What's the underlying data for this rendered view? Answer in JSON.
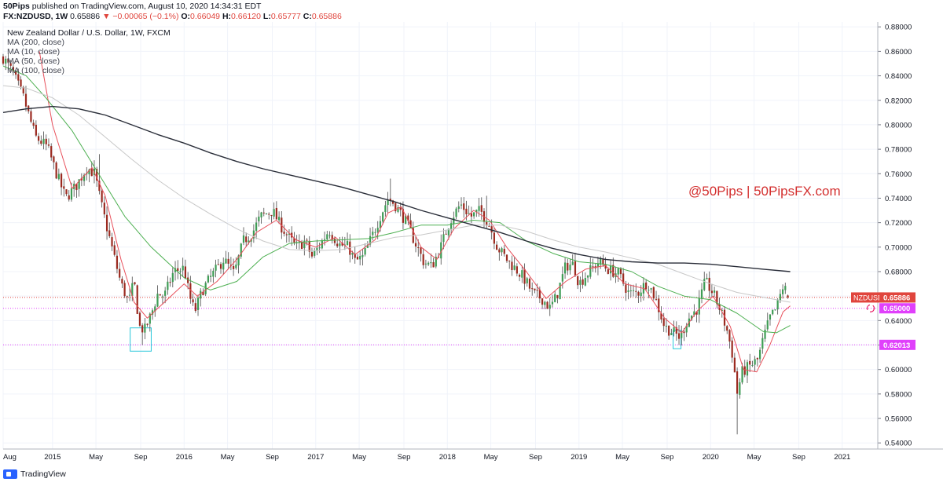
{
  "header": {
    "author": "50Pips",
    "published_on": "published on TradingView.com, August 10, 2020 14:34:31 EDT",
    "symbol": "FX:NZDUSD, 1W",
    "last": "0.65886",
    "change_arrow": "▼",
    "change": "−0.00065 (−0.1%)",
    "o_label": "O:",
    "o_val": "0.66049",
    "h_label": "H:",
    "h_val": "0.66120",
    "l_label": "L:",
    "l_val": "0.65777",
    "c_label": "C:",
    "c_val": "0.65886"
  },
  "legend": {
    "title": "New Zealand Dollar / U.S. Dollar, 1W, FXCM",
    "ma200": "MA (200, close)",
    "ma10": "MA (10, close)",
    "ma50": "MA (50, close)",
    "ma100": "MA (100, close)"
  },
  "watermark": "@50Pips | 50PipsFX.com",
  "footer": {
    "brand": "TradingView"
  },
  "chart_data": {
    "type": "candlestick",
    "title": "New Zealand Dollar / U.S. Dollar, 1W, FXCM",
    "ylim": [
      0.535,
      0.884
    ],
    "y_ticks": [
      "0.88000",
      "0.86000",
      "0.84000",
      "0.82000",
      "0.80000",
      "0.78000",
      "0.76000",
      "0.74000",
      "0.72000",
      "0.70000",
      "0.68000",
      "0.66000",
      "0.64000",
      "0.62000",
      "0.60000",
      "0.58000",
      "0.56000",
      "0.54000"
    ],
    "x_range": [
      2014.625,
      2021.27
    ],
    "x_ticks": [
      {
        "label": "Aug",
        "t": 2014.625
      },
      {
        "label": "2015",
        "t": 2015.0
      },
      {
        "label": "May",
        "t": 2015.33
      },
      {
        "label": "Sep",
        "t": 2015.67
      },
      {
        "label": "2016",
        "t": 2016.0
      },
      {
        "label": "May",
        "t": 2016.33
      },
      {
        "label": "Sep",
        "t": 2016.67
      },
      {
        "label": "2017",
        "t": 2017.0
      },
      {
        "label": "May",
        "t": 2017.33
      },
      {
        "label": "Sep",
        "t": 2017.67
      },
      {
        "label": "2018",
        "t": 2018.0
      },
      {
        "label": "May",
        "t": 2018.33
      },
      {
        "label": "Sep",
        "t": 2018.67
      },
      {
        "label": "2019",
        "t": 2019.0
      },
      {
        "label": "May",
        "t": 2019.33
      },
      {
        "label": "Sep",
        "t": 2019.67
      },
      {
        "label": "2020",
        "t": 2020.0
      },
      {
        "label": "May",
        "t": 2020.33
      },
      {
        "label": "Sep",
        "t": 2020.67
      },
      {
        "label": "2021",
        "t": 2021.0
      }
    ],
    "anchors": [
      [
        2014.625,
        0.855
      ],
      [
        2014.7,
        0.842
      ],
      [
        2014.78,
        0.822
      ],
      [
        2014.87,
        0.79
      ],
      [
        2014.96,
        0.782
      ],
      [
        2015.03,
        0.76
      ],
      [
        2015.1,
        0.74
      ],
      [
        2015.18,
        0.75
      ],
      [
        2015.26,
        0.765
      ],
      [
        2015.32,
        0.76
      ],
      [
        2015.37,
        0.735
      ],
      [
        2015.45,
        0.7
      ],
      [
        2015.52,
        0.67
      ],
      [
        2015.58,
        0.655
      ],
      [
        2015.62,
        0.672
      ],
      [
        2015.66,
        0.635
      ],
      [
        2015.7,
        0.632
      ],
      [
        2015.75,
        0.645
      ],
      [
        2015.8,
        0.662
      ],
      [
        2015.85,
        0.66
      ],
      [
        2015.92,
        0.68
      ],
      [
        2016.0,
        0.683
      ],
      [
        2016.04,
        0.66
      ],
      [
        2016.08,
        0.647
      ],
      [
        2016.14,
        0.665
      ],
      [
        2016.2,
        0.675
      ],
      [
        2016.3,
        0.69
      ],
      [
        2016.38,
        0.678
      ],
      [
        2016.45,
        0.705
      ],
      [
        2016.52,
        0.712
      ],
      [
        2016.58,
        0.725
      ],
      [
        2016.67,
        0.73
      ],
      [
        2016.72,
        0.72
      ],
      [
        2016.78,
        0.71
      ],
      [
        2016.85,
        0.7
      ],
      [
        2016.92,
        0.705
      ],
      [
        2016.97,
        0.692
      ],
      [
        2017.02,
        0.7
      ],
      [
        2017.1,
        0.714
      ],
      [
        2017.18,
        0.702
      ],
      [
        2017.25,
        0.7
      ],
      [
        2017.3,
        0.688
      ],
      [
        2017.36,
        0.692
      ],
      [
        2017.44,
        0.712
      ],
      [
        2017.5,
        0.728
      ],
      [
        2017.55,
        0.74
      ],
      [
        2017.6,
        0.735
      ],
      [
        2017.68,
        0.722
      ],
      [
        2017.75,
        0.705
      ],
      [
        2017.82,
        0.688
      ],
      [
        2017.88,
        0.684
      ],
      [
        2017.95,
        0.7
      ],
      [
        2018.02,
        0.722
      ],
      [
        2018.1,
        0.735
      ],
      [
        2018.18,
        0.725
      ],
      [
        2018.25,
        0.73
      ],
      [
        2018.32,
        0.718
      ],
      [
        2018.38,
        0.7
      ],
      [
        2018.45,
        0.69
      ],
      [
        2018.52,
        0.682
      ],
      [
        2018.58,
        0.675
      ],
      [
        2018.65,
        0.662
      ],
      [
        2018.72,
        0.658
      ],
      [
        2018.78,
        0.65
      ],
      [
        2018.83,
        0.66
      ],
      [
        2018.9,
        0.685
      ],
      [
        2018.96,
        0.686
      ],
      [
        2019.0,
        0.67
      ],
      [
        2019.06,
        0.678
      ],
      [
        2019.15,
        0.688
      ],
      [
        2019.22,
        0.682
      ],
      [
        2019.3,
        0.678
      ],
      [
        2019.38,
        0.662
      ],
      [
        2019.45,
        0.663
      ],
      [
        2019.52,
        0.672
      ],
      [
        2019.58,
        0.658
      ],
      [
        2019.65,
        0.635
      ],
      [
        2019.72,
        0.63
      ],
      [
        2019.77,
        0.626
      ],
      [
        2019.82,
        0.64
      ],
      [
        2019.9,
        0.65
      ],
      [
        2019.96,
        0.672
      ],
      [
        2020.02,
        0.662
      ],
      [
        2020.08,
        0.647
      ],
      [
        2020.13,
        0.63
      ],
      [
        2020.17,
        0.61
      ],
      [
        2020.2,
        0.58
      ],
      [
        2020.24,
        0.598
      ],
      [
        2020.3,
        0.603
      ],
      [
        2020.36,
        0.608
      ],
      [
        2020.4,
        0.625
      ],
      [
        2020.45,
        0.642
      ],
      [
        2020.5,
        0.65
      ],
      [
        2020.55,
        0.668
      ],
      [
        2020.605,
        0.659
      ]
    ],
    "series": [
      {
        "name": "MA (10, close)",
        "color": "#e8505b",
        "values": [
          [
            2014.9,
            0.86
          ],
          [
            2015.0,
            0.8
          ],
          [
            2015.15,
            0.748
          ],
          [
            2015.3,
            0.765
          ],
          [
            2015.4,
            0.742
          ],
          [
            2015.52,
            0.69
          ],
          [
            2015.62,
            0.655
          ],
          [
            2015.72,
            0.642
          ],
          [
            2015.85,
            0.655
          ],
          [
            2016.0,
            0.67
          ],
          [
            2016.1,
            0.66
          ],
          [
            2016.25,
            0.672
          ],
          [
            2016.4,
            0.69
          ],
          [
            2016.55,
            0.712
          ],
          [
            2016.7,
            0.722
          ],
          [
            2016.85,
            0.706
          ],
          [
            2017.0,
            0.7
          ],
          [
            2017.15,
            0.708
          ],
          [
            2017.3,
            0.694
          ],
          [
            2017.45,
            0.706
          ],
          [
            2017.55,
            0.728
          ],
          [
            2017.65,
            0.733
          ],
          [
            2017.8,
            0.7
          ],
          [
            2017.92,
            0.69
          ],
          [
            2018.05,
            0.715
          ],
          [
            2018.2,
            0.73
          ],
          [
            2018.32,
            0.722
          ],
          [
            2018.45,
            0.7
          ],
          [
            2018.6,
            0.68
          ],
          [
            2018.75,
            0.658
          ],
          [
            2018.9,
            0.672
          ],
          [
            2019.05,
            0.682
          ],
          [
            2019.2,
            0.685
          ],
          [
            2019.35,
            0.67
          ],
          [
            2019.5,
            0.666
          ],
          [
            2019.65,
            0.642
          ],
          [
            2019.78,
            0.63
          ],
          [
            2019.9,
            0.648
          ],
          [
            2020.02,
            0.66
          ],
          [
            2020.15,
            0.635
          ],
          [
            2020.25,
            0.6
          ],
          [
            2020.35,
            0.598
          ],
          [
            2020.45,
            0.62
          ],
          [
            2020.55,
            0.647
          ],
          [
            2020.605,
            0.652
          ]
        ]
      },
      {
        "name": "MA (50, close)",
        "color": "#4caf50",
        "values": [
          [
            2014.625,
            0.848
          ],
          [
            2014.8,
            0.84
          ],
          [
            2014.95,
            0.822
          ],
          [
            2015.15,
            0.795
          ],
          [
            2015.35,
            0.76
          ],
          [
            2015.55,
            0.725
          ],
          [
            2015.75,
            0.7
          ],
          [
            2016.0,
            0.675
          ],
          [
            2016.2,
            0.665
          ],
          [
            2016.4,
            0.672
          ],
          [
            2016.6,
            0.692
          ],
          [
            2016.8,
            0.703
          ],
          [
            2017.0,
            0.705
          ],
          [
            2017.2,
            0.706
          ],
          [
            2017.4,
            0.707
          ],
          [
            2017.6,
            0.712
          ],
          [
            2017.8,
            0.718
          ],
          [
            2018.0,
            0.718
          ],
          [
            2018.2,
            0.722
          ],
          [
            2018.4,
            0.72
          ],
          [
            2018.6,
            0.705
          ],
          [
            2018.8,
            0.695
          ],
          [
            2019.0,
            0.688
          ],
          [
            2019.2,
            0.686
          ],
          [
            2019.4,
            0.68
          ],
          [
            2019.6,
            0.668
          ],
          [
            2019.8,
            0.66
          ],
          [
            2020.0,
            0.657
          ],
          [
            2020.2,
            0.646
          ],
          [
            2020.4,
            0.631
          ],
          [
            2020.5,
            0.63
          ],
          [
            2020.605,
            0.636
          ]
        ]
      },
      {
        "name": "MA (100, close)",
        "color": "#c8c8c8",
        "values": [
          [
            2014.625,
            0.832
          ],
          [
            2014.8,
            0.83
          ],
          [
            2015.0,
            0.822
          ],
          [
            2015.2,
            0.808
          ],
          [
            2015.4,
            0.79
          ],
          [
            2015.6,
            0.772
          ],
          [
            2015.8,
            0.755
          ],
          [
            2016.0,
            0.74
          ],
          [
            2016.2,
            0.727
          ],
          [
            2016.4,
            0.715
          ],
          [
            2016.6,
            0.705
          ],
          [
            2016.8,
            0.698
          ],
          [
            2017.0,
            0.697
          ],
          [
            2017.2,
            0.698
          ],
          [
            2017.4,
            0.703
          ],
          [
            2017.6,
            0.708
          ],
          [
            2017.8,
            0.71
          ],
          [
            2018.0,
            0.714
          ],
          [
            2018.2,
            0.718
          ],
          [
            2018.4,
            0.718
          ],
          [
            2018.6,
            0.713
          ],
          [
            2018.8,
            0.706
          ],
          [
            2019.0,
            0.7
          ],
          [
            2019.2,
            0.696
          ],
          [
            2019.4,
            0.691
          ],
          [
            2019.6,
            0.686
          ],
          [
            2019.8,
            0.678
          ],
          [
            2020.0,
            0.67
          ],
          [
            2020.2,
            0.663
          ],
          [
            2020.4,
            0.659
          ],
          [
            2020.605,
            0.655
          ]
        ]
      },
      {
        "name": "MA (200, close)",
        "color": "#2a2e39",
        "values": [
          [
            2014.625,
            0.81
          ],
          [
            2014.8,
            0.813
          ],
          [
            2015.0,
            0.815
          ],
          [
            2015.2,
            0.813
          ],
          [
            2015.4,
            0.808
          ],
          [
            2015.6,
            0.8
          ],
          [
            2015.8,
            0.792
          ],
          [
            2016.0,
            0.785
          ],
          [
            2016.2,
            0.777
          ],
          [
            2016.4,
            0.77
          ],
          [
            2016.6,
            0.764
          ],
          [
            2016.8,
            0.759
          ],
          [
            2017.0,
            0.754
          ],
          [
            2017.2,
            0.749
          ],
          [
            2017.4,
            0.743
          ],
          [
            2017.6,
            0.737
          ],
          [
            2017.8,
            0.73
          ],
          [
            2018.0,
            0.724
          ],
          [
            2018.2,
            0.718
          ],
          [
            2018.4,
            0.712
          ],
          [
            2018.6,
            0.705
          ],
          [
            2018.8,
            0.699
          ],
          [
            2019.0,
            0.694
          ],
          [
            2019.2,
            0.69
          ],
          [
            2019.4,
            0.688
          ],
          [
            2019.6,
            0.687
          ],
          [
            2019.8,
            0.687
          ],
          [
            2020.0,
            0.686
          ],
          [
            2020.2,
            0.684
          ],
          [
            2020.4,
            0.682
          ],
          [
            2020.605,
            0.68
          ]
        ]
      }
    ],
    "hlines": [
      {
        "label": "NZDUSD",
        "value": 0.65886,
        "text": "0.65886",
        "color": "#e0453d",
        "style": "dotted"
      },
      {
        "label": "",
        "value": 0.65,
        "text": "0.65000",
        "color": "#e040fb",
        "style": "dotted"
      },
      {
        "label": "",
        "value": 0.62013,
        "text": "0.62013",
        "color": "#e040fb",
        "style": "dotted"
      }
    ],
    "boxes": [
      {
        "t0": 2015.59,
        "t1": 2015.75,
        "y0": 0.634,
        "y1": 0.615,
        "color": "#26c6da"
      },
      {
        "t0": 2019.715,
        "t1": 2019.775,
        "y0": 0.632,
        "y1": 0.617,
        "color": "#26c6da"
      }
    ],
    "extremes": [
      {
        "t": 2015.35,
        "high": 0.776
      },
      {
        "t": 2015.69,
        "low": 0.62
      },
      {
        "t": 2017.56,
        "high": 0.756
      },
      {
        "t": 2018.3,
        "high": 0.742
      },
      {
        "t": 2020.205,
        "low": 0.547
      },
      {
        "t": 2020.56,
        "high": 0.671
      }
    ]
  }
}
